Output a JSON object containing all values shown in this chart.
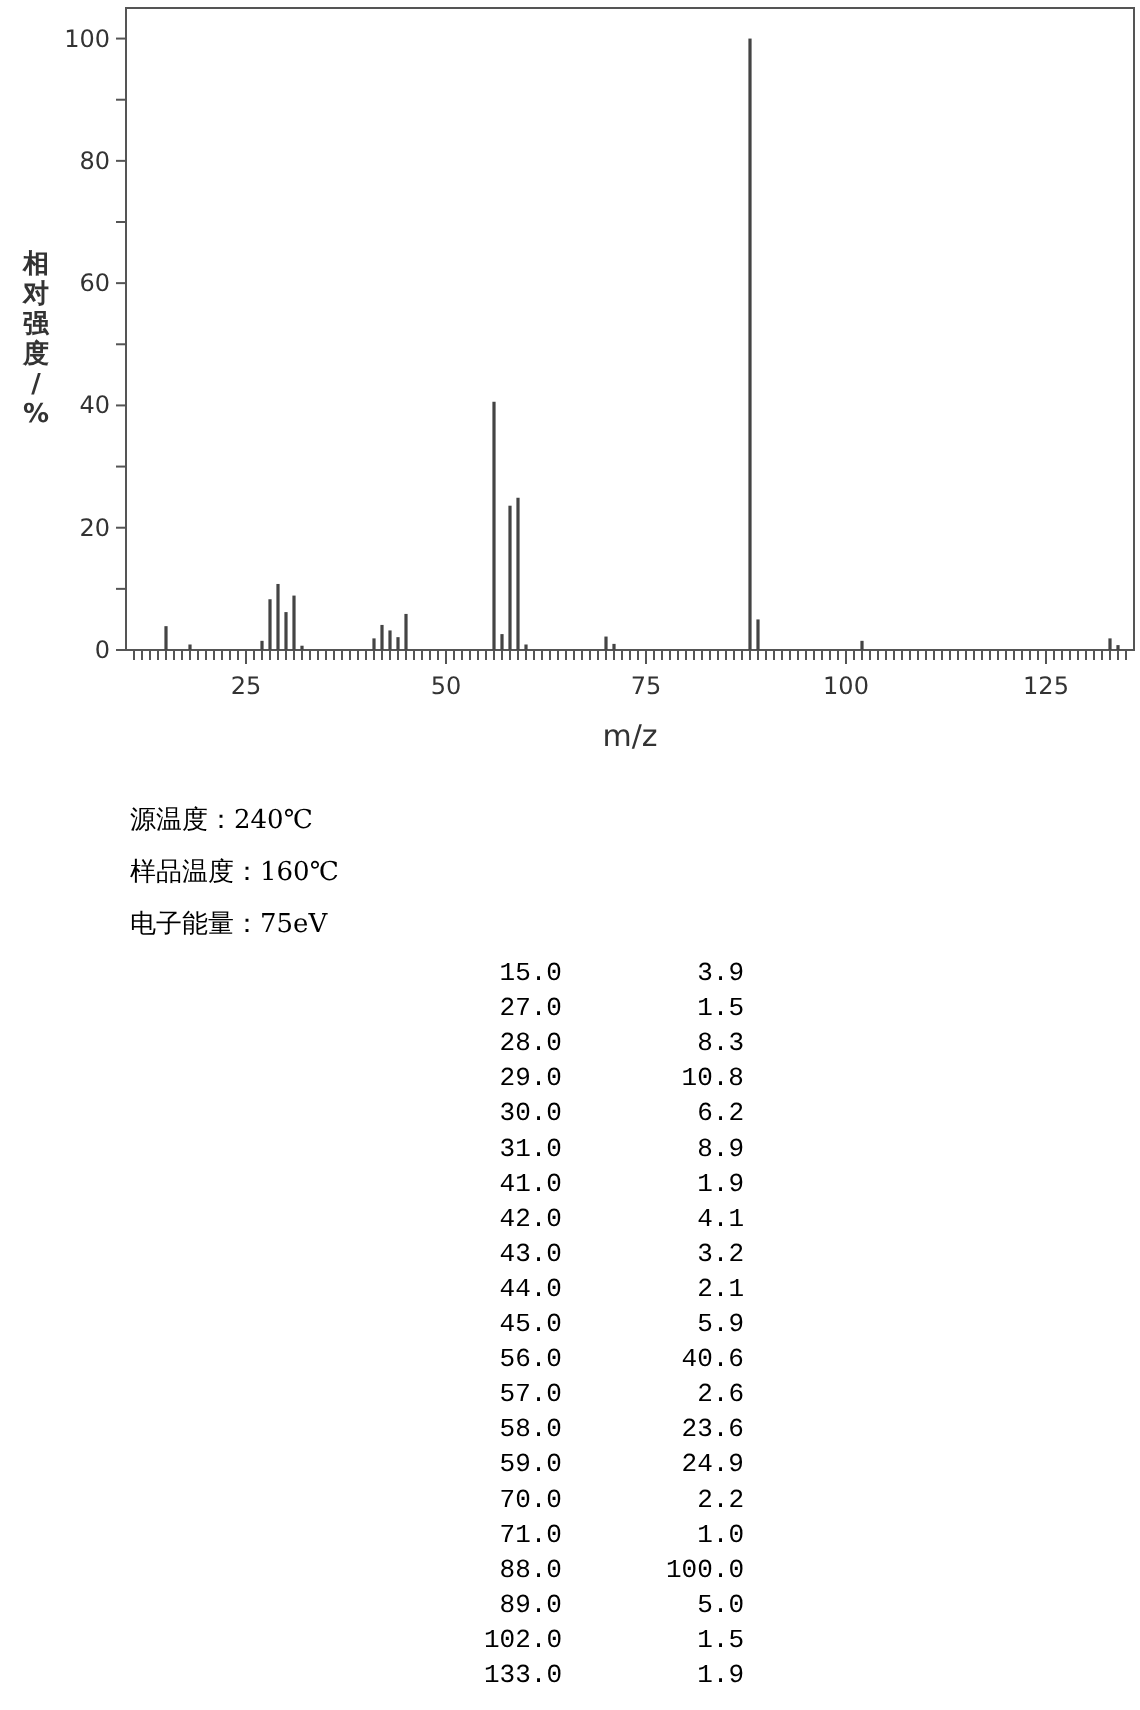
{
  "chart_data": [
    {
      "type": "bar",
      "xlabel": "m/z",
      "ylabel": "相对强度/%",
      "x": [
        15,
        18,
        27,
        28,
        29,
        30,
        31,
        32,
        41,
        42,
        43,
        44,
        45,
        56,
        57,
        58,
        59,
        60,
        70,
        71,
        88,
        89,
        102,
        133,
        134
      ],
      "values": [
        3.9,
        0.9,
        1.5,
        8.3,
        10.8,
        6.2,
        8.9,
        0.7,
        1.9,
        4.1,
        3.2,
        2.1,
        5.9,
        40.6,
        2.6,
        23.6,
        24.9,
        0.9,
        2.2,
        1.0,
        100.0,
        5.0,
        1.5,
        1.9,
        0.8
      ],
      "color": "#444444",
      "xlim": [
        10,
        136
      ],
      "ylim": [
        0,
        105
      ],
      "yticks": [
        0,
        {
          "value": 10,
          "label": null
        },
        20,
        {
          "value": 30,
          "label": null
        },
        40,
        {
          "value": 50,
          "label": null
        },
        60,
        {
          "value": 70,
          "label": null
        },
        80,
        {
          "value": 90,
          "label": null
        },
        100
      ],
      "xticks": [
        {
          "value": 11,
          "label": null
        },
        {
          "value": 12,
          "label": null
        },
        {
          "value": 13,
          "label": null
        },
        {
          "value": 14,
          "label": null
        },
        {
          "value": 15,
          "label": null
        },
        {
          "value": 16,
          "label": null
        },
        {
          "value": 17,
          "label": null
        },
        {
          "value": 18,
          "label": null
        },
        {
          "value": 19,
          "label": null
        },
        {
          "value": 20,
          "label": null
        },
        {
          "value": 21,
          "label": null
        },
        {
          "value": 22,
          "label": null
        },
        {
          "value": 23,
          "label": null
        },
        {
          "value": 24,
          "label": null
        },
        25,
        {
          "value": 26,
          "label": null
        },
        {
          "value": 27,
          "label": null
        },
        {
          "value": 28,
          "label": null
        },
        {
          "value": 29,
          "label": null
        },
        {
          "value": 30,
          "label": null
        },
        {
          "value": 31,
          "label": null
        },
        {
          "value": 32,
          "label": null
        },
        {
          "value": 33,
          "label": null
        },
        {
          "value": 34,
          "label": null
        },
        {
          "value": 35,
          "label": null
        },
        {
          "value": 36,
          "label": null
        },
        {
          "value": 37,
          "label": null
        },
        {
          "value": 38,
          "label": null
        },
        {
          "value": 39,
          "label": null
        },
        {
          "value": 40,
          "label": null
        },
        {
          "value": 41,
          "label": null
        },
        {
          "value": 42,
          "label": null
        },
        {
          "value": 43,
          "label": null
        },
        {
          "value": 44,
          "label": null
        },
        {
          "value": 45,
          "label": null
        },
        {
          "value": 46,
          "label": null
        },
        {
          "value": 47,
          "label": null
        },
        {
          "value": 48,
          "label": null
        },
        {
          "value": 49,
          "label": null
        },
        50,
        {
          "value": 51,
          "label": null
        },
        {
          "value": 52,
          "label": null
        },
        {
          "value": 53,
          "label": null
        },
        {
          "value": 54,
          "label": null
        },
        {
          "value": 55,
          "label": null
        },
        {
          "value": 56,
          "label": null
        },
        {
          "value": 57,
          "label": null
        },
        {
          "value": 58,
          "label": null
        },
        {
          "value": 59,
          "label": null
        },
        {
          "value": 60,
          "label": null
        },
        {
          "value": 61,
          "label": null
        },
        {
          "value": 62,
          "label": null
        },
        {
          "value": 63,
          "label": null
        },
        {
          "value": 64,
          "label": null
        },
        {
          "value": 65,
          "label": null
        },
        {
          "value": 66,
          "label": null
        },
        {
          "value": 67,
          "label": null
        },
        {
          "value": 68,
          "label": null
        },
        {
          "value": 69,
          "label": null
        },
        {
          "value": 70,
          "label": null
        },
        {
          "value": 71,
          "label": null
        },
        {
          "value": 72,
          "label": null
        },
        {
          "value": 73,
          "label": null
        },
        {
          "value": 74,
          "label": null
        },
        75,
        {
          "value": 76,
          "label": null
        },
        {
          "value": 77,
          "label": null
        },
        {
          "value": 78,
          "label": null
        },
        {
          "value": 79,
          "label": null
        },
        {
          "value": 80,
          "label": null
        },
        {
          "value": 81,
          "label": null
        },
        {
          "value": 82,
          "label": null
        },
        {
          "value": 83,
          "label": null
        },
        {
          "value": 84,
          "label": null
        },
        {
          "value": 85,
          "label": null
        },
        {
          "value": 86,
          "label": null
        },
        {
          "value": 87,
          "label": null
        },
        {
          "value": 88,
          "label": null
        },
        {
          "value": 89,
          "label": null
        },
        {
          "value": 90,
          "label": null
        },
        {
          "value": 91,
          "label": null
        },
        {
          "value": 92,
          "label": null
        },
        {
          "value": 93,
          "label": null
        },
        {
          "value": 94,
          "label": null
        },
        {
          "value": 95,
          "label": null
        },
        {
          "value": 96,
          "label": null
        },
        {
          "value": 97,
          "label": null
        },
        {
          "value": 98,
          "label": null
        },
        {
          "value": 99,
          "label": null
        },
        100,
        {
          "value": 101,
          "label": null
        },
        {
          "value": 102,
          "label": null
        },
        {
          "value": 103,
          "label": null
        },
        {
          "value": 104,
          "label": null
        },
        {
          "value": 105,
          "label": null
        },
        {
          "value": 106,
          "label": null
        },
        {
          "value": 107,
          "label": null
        },
        {
          "value": 108,
          "label": null
        },
        {
          "value": 109,
          "label": null
        },
        {
          "value": 110,
          "label": null
        },
        {
          "value": 111,
          "label": null
        },
        {
          "value": 112,
          "label": null
        },
        {
          "value": 113,
          "label": null
        },
        {
          "value": 114,
          "label": null
        },
        {
          "value": 115,
          "label": null
        },
        {
          "value": 116,
          "label": null
        },
        {
          "value": 117,
          "label": null
        },
        {
          "value": 118,
          "label": null
        },
        {
          "value": 119,
          "label": null
        },
        {
          "value": 120,
          "label": null
        },
        {
          "value": 121,
          "label": null
        },
        {
          "value": 122,
          "label": null
        },
        {
          "value": 123,
          "label": null
        },
        {
          "value": 124,
          "label": null
        },
        125,
        {
          "value": 126,
          "label": null
        },
        {
          "value": 127,
          "label": null
        },
        {
          "value": 128,
          "label": null
        },
        {
          "value": 129,
          "label": null
        },
        {
          "value": 130,
          "label": null
        },
        {
          "value": 131,
          "label": null
        },
        {
          "value": 132,
          "label": null
        },
        {
          "value": 133,
          "label": null
        },
        {
          "value": 134,
          "label": null
        },
        {
          "value": 135,
          "label": null
        }
      ],
      "annotations": [
        "源温度：240℃",
        "样品温度：160℃",
        "电子能量：75eV"
      ],
      "grid": false
    },
    {
      "type": "other",
      "categories": [
        "15.0",
        "27.0",
        "28.0",
        "29.0",
        "30.0",
        "31.0",
        "41.0",
        "42.0",
        "43.0",
        "44.0",
        "45.0",
        "56.0",
        "57.0",
        "58.0",
        "59.0",
        "70.0",
        "71.0",
        "88.0",
        "89.0",
        "102.0",
        "133.0"
      ],
      "values": [
        3.9,
        1.5,
        8.3,
        10.8,
        6.2,
        8.9,
        1.9,
        4.1,
        3.2,
        2.1,
        5.9,
        40.6,
        2.6,
        23.6,
        24.9,
        2.2,
        1.0,
        100.0,
        5.0,
        1.5,
        1.9
      ],
      "value_labels": [
        "3.9",
        "1.5",
        "8.3",
        "10.8",
        "6.2",
        "8.9",
        "1.9",
        "4.1",
        "3.2",
        "2.1",
        "5.9",
        "40.6",
        "2.6",
        "23.6",
        "24.9",
        "2.2",
        "1.0",
        "100.0",
        "5.0",
        "1.5",
        "1.9"
      ]
    }
  ]
}
